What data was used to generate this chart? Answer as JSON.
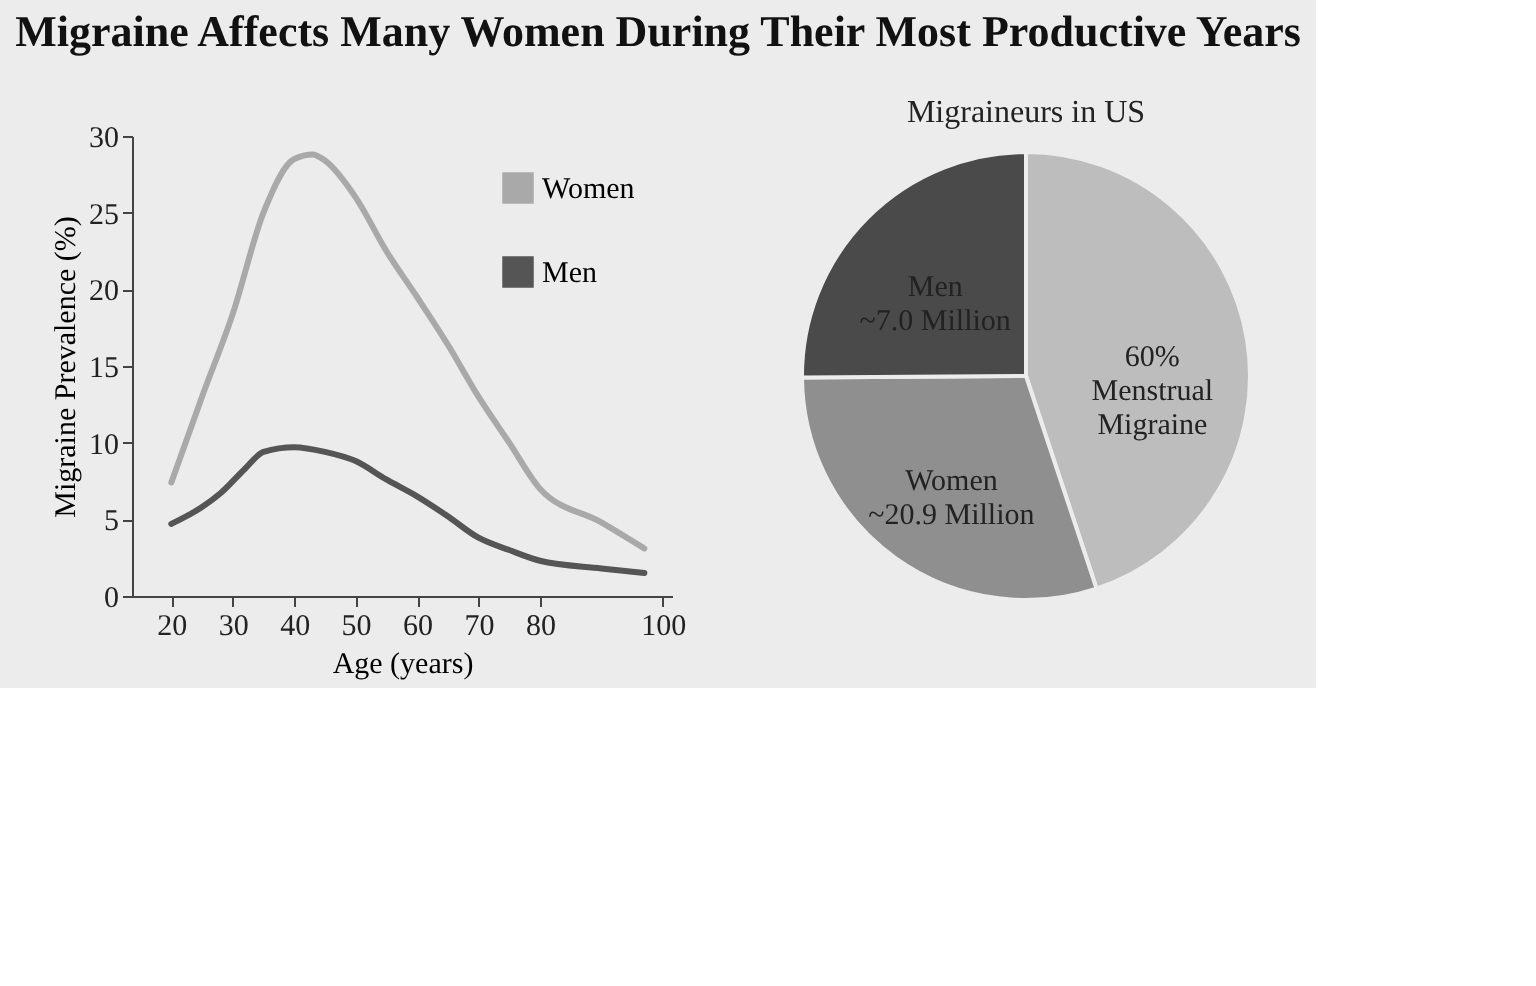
{
  "chart_data": [
    {
      "type": "line",
      "title": "Migraine Affects Many Women During Their Most Productive Years",
      "xlabel": "Age (years)",
      "ylabel": "Migraine Prevalence (%)",
      "xlim": [
        13.6,
        101.5
      ],
      "xticks": [
        20,
        30,
        40,
        50,
        60,
        70,
        80,
        100
      ],
      "ylim": [
        0,
        30
      ],
      "yticks": [
        0,
        5,
        10,
        15,
        20,
        25,
        30
      ],
      "grid": false,
      "legend": "top right",
      "marker": "none",
      "line_style": "solid",
      "series": [
        {
          "name": "Women",
          "color": "#a9a9a9",
          "x": [
            20,
            25,
            30,
            35,
            40,
            43,
            45,
            50,
            55,
            60,
            65,
            70,
            75,
            80,
            90,
            97
          ],
          "values": [
            7.4,
            13,
            18.4,
            25,
            28.5,
            28.8,
            28.4,
            26,
            22.5,
            19.5,
            16.4,
            13,
            10,
            7,
            4.8,
            3.1
          ]
        },
        {
          "name": "Men",
          "color": "#555555",
          "x": [
            20,
            25,
            28,
            32,
            35,
            40,
            45,
            50,
            55,
            60,
            65,
            70,
            75,
            80,
            90,
            97
          ],
          "values": [
            4.7,
            5.8,
            6.7,
            8.3,
            9.4,
            9.7,
            9.4,
            8.8,
            7.6,
            6.5,
            5.2,
            3.8,
            3.0,
            2.3,
            1.8,
            1.5
          ]
        }
      ]
    },
    {
      "type": "pie",
      "title": "Migraineurs in US",
      "categories": [
        "60%\nMenstrual\nMigraine",
        "Women\n~20.9 Million",
        "Men\n~7.0 Million"
      ],
      "values": [
        44.9,
        30.0,
        25.1
      ],
      "colors": [
        "#bdbdbd",
        "#8f8f8f",
        "#4a4a4a"
      ]
    }
  ]
}
